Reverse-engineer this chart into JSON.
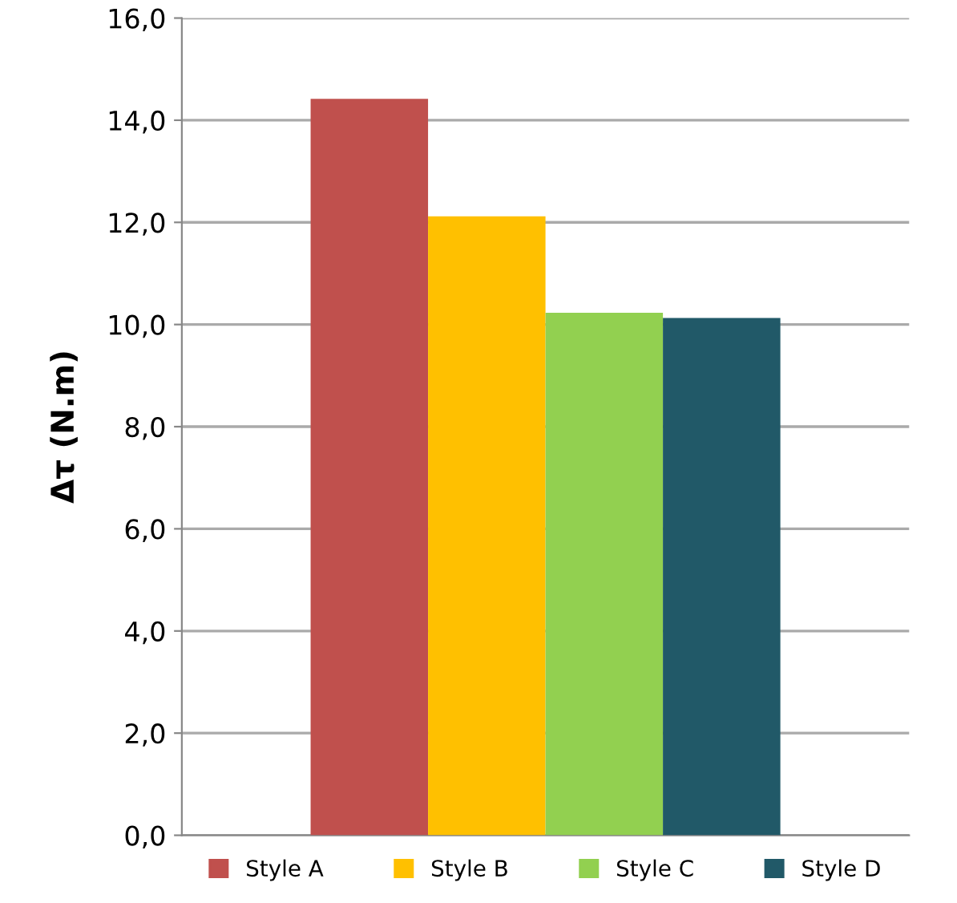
{
  "chart_data": {
    "type": "bar",
    "ylabel": "Δτ (N.m)",
    "categories": [
      null
    ],
    "series": [
      {
        "name": "Style A",
        "color": "#c0504d",
        "values": [
          14.42
        ]
      },
      {
        "name": "Style B",
        "color": "#ffc000",
        "values": [
          12.12
        ]
      },
      {
        "name": "Style C",
        "color": "#92d050",
        "values": [
          10.23
        ]
      },
      {
        "name": "Style D",
        "color": "#215968",
        "values": [
          10.13
        ]
      }
    ],
    "ylim": [
      0,
      16
    ],
    "yticks": [
      {
        "value": 0,
        "label": "0,0"
      },
      {
        "value": 2,
        "label": "2,0"
      },
      {
        "value": 4,
        "label": "4,0"
      },
      {
        "value": 6,
        "label": "6,0"
      },
      {
        "value": 8,
        "label": "8,0"
      },
      {
        "value": 10,
        "label": "10,0"
      },
      {
        "value": 12,
        "label": "12,0"
      },
      {
        "value": 14,
        "label": "14,0"
      },
      {
        "value": 16,
        "label": "16,0"
      }
    ],
    "grid": "y",
    "legend": "bottom"
  }
}
